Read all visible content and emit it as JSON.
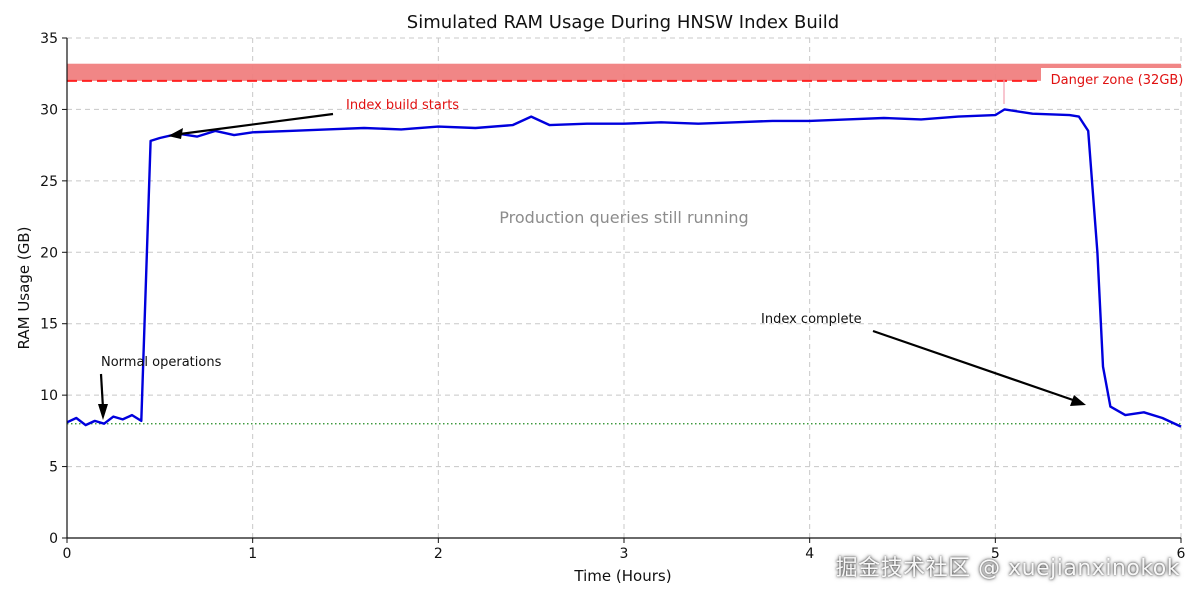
{
  "chart_data": {
    "type": "line",
    "title": "Simulated RAM Usage During HNSW Index Build",
    "xlabel": "Time (Hours)",
    "ylabel": "RAM Usage (GB)",
    "xlim": [
      0,
      6
    ],
    "ylim": [
      0,
      35
    ],
    "xticks": [
      0,
      1,
      2,
      3,
      4,
      5,
      6
    ],
    "xtick_labels": [
      "0",
      "1",
      "2",
      "3",
      "4",
      "5",
      "6"
    ],
    "yticks": [
      0,
      5,
      10,
      15,
      20,
      25,
      30,
      35
    ],
    "ytick_labels": [
      "0",
      "5",
      "10",
      "15",
      "20",
      "25",
      "30",
      "35"
    ],
    "grid": true,
    "series": [
      {
        "name": "RAM usage",
        "color": "#0000dd",
        "x": [
          0.0,
          0.05,
          0.1,
          0.15,
          0.2,
          0.25,
          0.3,
          0.35,
          0.4,
          0.45,
          0.5,
          0.6,
          0.7,
          0.8,
          0.9,
          1.0,
          1.2,
          1.4,
          1.6,
          1.8,
          2.0,
          2.2,
          2.4,
          2.5,
          2.6,
          2.8,
          3.0,
          3.2,
          3.4,
          3.6,
          3.8,
          4.0,
          4.2,
          4.4,
          4.6,
          4.8,
          5.0,
          5.05,
          5.2,
          5.4,
          5.45,
          5.5,
          5.55,
          5.58,
          5.62,
          5.7,
          5.8,
          5.9,
          6.0
        ],
        "values": [
          8.1,
          8.4,
          7.9,
          8.2,
          8.0,
          8.5,
          8.3,
          8.6,
          8.2,
          27.8,
          28.0,
          28.3,
          28.1,
          28.5,
          28.2,
          28.4,
          28.5,
          28.6,
          28.7,
          28.6,
          28.8,
          28.7,
          28.9,
          29.5,
          28.9,
          29.0,
          29.0,
          29.1,
          29.0,
          29.1,
          29.2,
          29.2,
          29.3,
          29.4,
          29.3,
          29.5,
          29.6,
          30.0,
          29.7,
          29.6,
          29.5,
          28.5,
          20.0,
          12.0,
          9.2,
          8.6,
          8.8,
          8.4,
          7.8
        ]
      }
    ],
    "reference_lines": [
      {
        "name": "danger-threshold",
        "y": 32,
        "color": "#ff2222",
        "style": "dashed"
      },
      {
        "name": "baseline",
        "y": 8,
        "color": "#228b22",
        "style": "dotted"
      }
    ],
    "danger_band": {
      "y_from": 32,
      "y_to": 33.2,
      "color": "#f08080"
    },
    "annotations": {
      "danger_label": "Danger zone (32GB)",
      "build_start": "Index build starts",
      "normal_ops": "Normal operations",
      "production": "Production queries still running",
      "complete": "Index complete"
    }
  },
  "watermark": "掘金技术社区 @ xuejianxinokok"
}
